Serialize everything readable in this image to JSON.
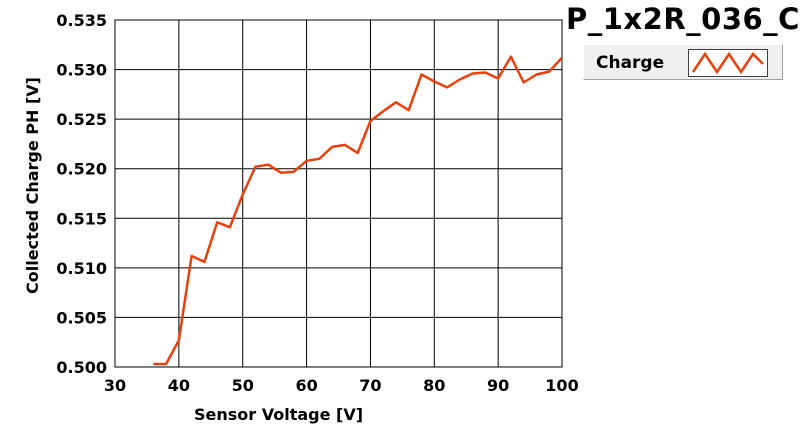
{
  "title": "P_1x2R_036_C",
  "legend": {
    "label": "Charge"
  },
  "colors": {
    "series": "#e8400c",
    "grid": "#000000",
    "plot_bg": "#ffffff"
  },
  "chart_data": {
    "type": "line",
    "title": "P_1x2R_036_C",
    "xlabel": "Sensor Voltage [V]",
    "ylabel": "Collected Charge PH [V]",
    "xlim": [
      30,
      100
    ],
    "ylim": [
      0.5,
      0.535
    ],
    "xticks": [
      30,
      40,
      50,
      60,
      70,
      80,
      90,
      100
    ],
    "yticks": [
      0.5,
      0.505,
      0.51,
      0.515,
      0.52,
      0.525,
      0.53,
      0.535
    ],
    "xtick_labels": [
      "30",
      "40",
      "50",
      "60",
      "70",
      "80",
      "90",
      "100"
    ],
    "ytick_labels": [
      "0.500",
      "0.505",
      "0.510",
      "0.515",
      "0.520",
      "0.525",
      "0.530",
      "0.535"
    ],
    "grid": true,
    "legend_position": "top-right",
    "series": [
      {
        "name": "Charge",
        "x": [
          36,
          38,
          40,
          42,
          44,
          46,
          48,
          50,
          52,
          54,
          56,
          58,
          60,
          62,
          64,
          66,
          68,
          70,
          72,
          74,
          76,
          78,
          80,
          82,
          84,
          86,
          88,
          90,
          92,
          94,
          96,
          98,
          100
        ],
        "y": [
          0.5003,
          0.5003,
          0.5027,
          0.5112,
          0.5106,
          0.5146,
          0.5141,
          0.5174,
          0.5202,
          0.5204,
          0.5196,
          0.5197,
          0.5208,
          0.521,
          0.5222,
          0.5224,
          0.5216,
          0.5248,
          0.5258,
          0.5267,
          0.5259,
          0.5295,
          0.5288,
          0.5282,
          0.529,
          0.5296,
          0.5297,
          0.5291,
          0.5313,
          0.5287,
          0.5295,
          0.5298,
          0.5312
        ]
      }
    ]
  }
}
